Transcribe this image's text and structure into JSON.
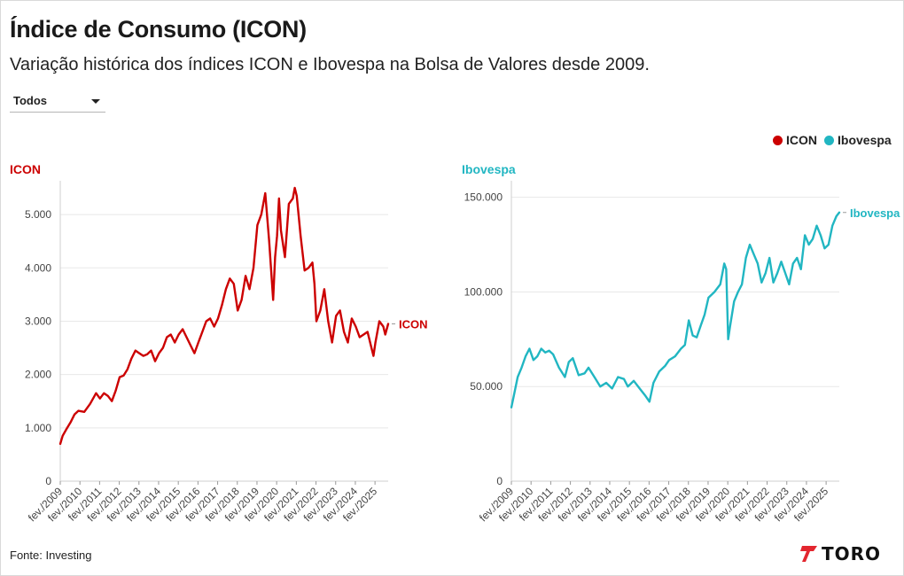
{
  "header": {
    "title": "Índice de Consumo (ICON)",
    "subtitle": "Variação histórica dos índices ICON e Ibovespa na Bolsa de Valores desde 2009."
  },
  "filter": {
    "selected": "Todos"
  },
  "legend": [
    {
      "label": "ICON",
      "color": "#cc0000"
    },
    {
      "label": "Ibovespa",
      "color": "#21b6c2"
    }
  ],
  "footer": {
    "source": "Fonte: Investing",
    "logo_text": "TORO"
  },
  "colors": {
    "icon": "#cc0000",
    "ibovespa": "#21b6c2",
    "grid": "#e8e8e8",
    "axis": "#444444"
  },
  "chart_data": [
    {
      "type": "line",
      "title": "ICON",
      "end_label": "ICON",
      "xlabel": "",
      "ylabel": "",
      "ylim": [
        0,
        5500
      ],
      "yticks": [
        0,
        1000,
        2000,
        3000,
        4000,
        5000
      ],
      "ytick_labels": [
        "0",
        "1.000",
        "2.000",
        "3.000",
        "4.000",
        "5.000"
      ],
      "xlim": [
        2009.08,
        2025.75
      ],
      "x_tick_labels": [
        "fev./2009",
        "fev./2010",
        "fev./2011",
        "fev./2012",
        "fev./2013",
        "fev./2014",
        "fev./2015",
        "fev./2016",
        "fev./2017",
        "fev./2018",
        "fev./2019",
        "fev./2020",
        "fev./2021",
        "fev./2022",
        "fev./2023",
        "fev./2024",
        "fev./2025"
      ],
      "x_ticks": [
        2009.08,
        2010.08,
        2011.08,
        2012.08,
        2013.08,
        2014.08,
        2015.08,
        2016.08,
        2017.08,
        2018.08,
        2019.08,
        2020.08,
        2021.08,
        2022.08,
        2023.08,
        2024.08,
        2025.08
      ],
      "grid": true,
      "color": "#cc0000",
      "x": [
        2009.08,
        2009.2,
        2009.4,
        2009.6,
        2009.8,
        2010.0,
        2010.3,
        2010.6,
        2010.9,
        2011.1,
        2011.3,
        2011.5,
        2011.7,
        2011.9,
        2012.1,
        2012.3,
        2012.5,
        2012.7,
        2012.9,
        2013.1,
        2013.3,
        2013.5,
        2013.7,
        2013.9,
        2014.1,
        2014.3,
        2014.5,
        2014.7,
        2014.9,
        2015.1,
        2015.3,
        2015.5,
        2015.7,
        2015.9,
        2016.1,
        2016.3,
        2016.5,
        2016.7,
        2016.9,
        2017.1,
        2017.3,
        2017.5,
        2017.7,
        2017.9,
        2018.1,
        2018.3,
        2018.5,
        2018.7,
        2018.9,
        2019.1,
        2019.3,
        2019.5,
        2019.7,
        2019.9,
        2020.0,
        2020.1,
        2020.2,
        2020.3,
        2020.5,
        2020.7,
        2020.9,
        2021.0,
        2021.1,
        2021.3,
        2021.5,
        2021.7,
        2021.9,
        2022.0,
        2022.1,
        2022.3,
        2022.5,
        2022.7,
        2022.9,
        2023.1,
        2023.3,
        2023.5,
        2023.7,
        2023.9,
        2024.1,
        2024.3,
        2024.5,
        2024.7,
        2024.9,
        2025.0,
        2025.1,
        2025.3,
        2025.5,
        2025.6,
        2025.75
      ],
      "values": [
        700,
        850,
        980,
        1100,
        1250,
        1320,
        1300,
        1450,
        1650,
        1550,
        1650,
        1600,
        1500,
        1700,
        1950,
        1980,
        2100,
        2300,
        2450,
        2400,
        2350,
        2380,
        2450,
        2250,
        2400,
        2500,
        2700,
        2750,
        2600,
        2750,
        2850,
        2700,
        2550,
        2400,
        2600,
        2800,
        3000,
        3050,
        2900,
        3050,
        3300,
        3600,
        3800,
        3700,
        3200,
        3400,
        3850,
        3600,
        4000,
        4800,
        5000,
        5400,
        4500,
        3400,
        4200,
        4600,
        5300,
        4700,
        4200,
        5200,
        5300,
        5500,
        5350,
        4600,
        3950,
        4000,
        4100,
        3700,
        3000,
        3200,
        3600,
        3000,
        2600,
        3100,
        3200,
        2800,
        2600,
        3050,
        2900,
        2700,
        2750,
        2800,
        2500,
        2350,
        2600,
        3000,
        2900,
        2750,
        2950
      ]
    },
    {
      "type": "line",
      "title": "Ibovespa",
      "end_label": "Ibovespa",
      "xlabel": "",
      "ylabel": "",
      "ylim": [
        0,
        155000
      ],
      "yticks": [
        0,
        50000,
        100000,
        150000
      ],
      "ytick_labels": [
        "0",
        "50.000",
        "100.000",
        "150.000"
      ],
      "xlim": [
        2009.08,
        2025.75
      ],
      "x_tick_labels": [
        "fev./2009",
        "fev./2010",
        "fev./2011",
        "fev./2012",
        "fev./2013",
        "fev./2014",
        "fev./2015",
        "fev./2016",
        "fev./2017",
        "fev./2018",
        "fev./2019",
        "fev./2020",
        "fev./2021",
        "fev./2022",
        "fev./2023",
        "fev./2024",
        "fev./2025"
      ],
      "x_ticks": [
        2009.08,
        2010.08,
        2011.08,
        2012.08,
        2013.08,
        2014.08,
        2015.08,
        2016.08,
        2017.08,
        2018.08,
        2019.08,
        2020.08,
        2021.08,
        2022.08,
        2023.08,
        2024.08,
        2025.08
      ],
      "grid": true,
      "color": "#21b6c2",
      "x": [
        2009.08,
        2009.2,
        2009.4,
        2009.6,
        2009.8,
        2010.0,
        2010.2,
        2010.4,
        2010.6,
        2010.8,
        2011.0,
        2011.2,
        2011.5,
        2011.8,
        2012.0,
        2012.2,
        2012.5,
        2012.8,
        2013.0,
        2013.3,
        2013.6,
        2013.9,
        2014.2,
        2014.5,
        2014.8,
        2015.0,
        2015.3,
        2015.6,
        2015.9,
        2016.1,
        2016.3,
        2016.6,
        2016.9,
        2017.1,
        2017.4,
        2017.7,
        2017.9,
        2018.1,
        2018.3,
        2018.5,
        2018.7,
        2018.9,
        2019.1,
        2019.4,
        2019.7,
        2019.9,
        2020.0,
        2020.1,
        2020.2,
        2020.4,
        2020.6,
        2020.8,
        2021.0,
        2021.2,
        2021.4,
        2021.6,
        2021.8,
        2022.0,
        2022.2,
        2022.4,
        2022.6,
        2022.8,
        2023.0,
        2023.2,
        2023.4,
        2023.6,
        2023.8,
        2024.0,
        2024.2,
        2024.4,
        2024.6,
        2024.8,
        2025.0,
        2025.2,
        2025.4,
        2025.6,
        2025.75
      ],
      "values": [
        39000,
        45000,
        55000,
        60000,
        66000,
        70000,
        64000,
        66000,
        70000,
        68000,
        69000,
        67000,
        60000,
        55000,
        63000,
        65000,
        56000,
        57000,
        60000,
        55000,
        50000,
        52000,
        49000,
        55000,
        54000,
        50000,
        53000,
        49000,
        45000,
        42000,
        52000,
        58000,
        61000,
        64000,
        66000,
        70000,
        72000,
        85000,
        77000,
        76000,
        82000,
        88000,
        97000,
        100000,
        104000,
        115000,
        112000,
        75000,
        82000,
        95000,
        100000,
        104000,
        118000,
        125000,
        120000,
        115000,
        105000,
        110000,
        118000,
        105000,
        110000,
        116000,
        110000,
        104000,
        115000,
        118000,
        112000,
        130000,
        125000,
        128000,
        135000,
        130000,
        123000,
        125000,
        135000,
        140000,
        142000
      ]
    }
  ]
}
